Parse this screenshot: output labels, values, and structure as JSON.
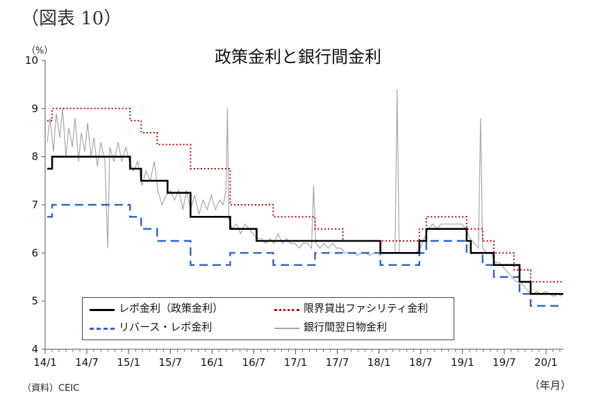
{
  "figure_label": "（図表 10）",
  "source": "（資料）CEIC",
  "chart_data": {
    "type": "line",
    "title": "政策金利と銀行間金利",
    "ylabel": "（%）",
    "xlabel": "（年月）",
    "ylim": [
      4,
      10
    ],
    "yticks": [
      "4",
      "5",
      "6",
      "7",
      "8",
      "9",
      "10"
    ],
    "xlim": [
      0,
      74.5
    ],
    "xticks": [
      {
        "m": 0,
        "label": "14/1"
      },
      {
        "m": 6,
        "label": "14/7"
      },
      {
        "m": 12,
        "label": "15/1"
      },
      {
        "m": 18,
        "label": "15/7"
      },
      {
        "m": 24,
        "label": "16/1"
      },
      {
        "m": 30,
        "label": "16/7"
      },
      {
        "m": 36,
        "label": "17/1"
      },
      {
        "m": 42,
        "label": "17/7"
      },
      {
        "m": 48,
        "label": "18/1"
      },
      {
        "m": 54,
        "label": "18/7"
      },
      {
        "m": 60,
        "label": "19/1"
      },
      {
        "m": 66,
        "label": "19/7"
      },
      {
        "m": 72,
        "label": "20/1"
      }
    ],
    "legend": "bottom-left, inside plot, 2 columns",
    "series": [
      {
        "name": "レポ金利（政策金利）",
        "style": "solid",
        "color": "#000000",
        "points": [
          [
            0.3,
            7.75
          ],
          [
            1,
            8.0
          ],
          [
            12.2,
            7.75
          ],
          [
            13.8,
            7.5
          ],
          [
            17.6,
            7.25
          ],
          [
            20.9,
            6.75
          ],
          [
            26.6,
            6.5
          ],
          [
            30.4,
            6.25
          ],
          [
            48.2,
            6.0
          ],
          [
            53.8,
            6.25
          ],
          [
            54.8,
            6.5
          ],
          [
            60.6,
            6.25
          ],
          [
            61.2,
            6.0
          ],
          [
            64.5,
            5.75
          ],
          [
            68.2,
            5.4
          ],
          [
            69.8,
            5.15
          ],
          [
            74.5,
            5.15
          ]
        ]
      },
      {
        "name": "リバース・レポ金利",
        "style": "dashed",
        "color": "#2b63c9",
        "points": [
          [
            0.3,
            6.75
          ],
          [
            1,
            7.0
          ],
          [
            12.2,
            6.75
          ],
          [
            13.8,
            6.5
          ],
          [
            16.1,
            6.25
          ],
          [
            20.9,
            5.75
          ],
          [
            26.6,
            6.0
          ],
          [
            32.8,
            5.75
          ],
          [
            38.8,
            6.0
          ],
          [
            48.2,
            5.75
          ],
          [
            53.8,
            6.0
          ],
          [
            54.8,
            6.25
          ],
          [
            60.6,
            6.0
          ],
          [
            62.9,
            5.75
          ],
          [
            64.5,
            5.5
          ],
          [
            68.2,
            5.15
          ],
          [
            69.8,
            4.9
          ],
          [
            74.5,
            4.9
          ]
        ]
      },
      {
        "name": "限界貸出ファシリティ金利",
        "style": "dotted",
        "color": "#c00000",
        "points": [
          [
            0.3,
            8.75
          ],
          [
            1,
            9.0
          ],
          [
            12.2,
            8.75
          ],
          [
            13.8,
            8.5
          ],
          [
            16.1,
            8.25
          ],
          [
            20.9,
            7.75
          ],
          [
            26.6,
            7.0
          ],
          [
            32.8,
            6.75
          ],
          [
            38.8,
            6.5
          ],
          [
            42.8,
            6.25
          ],
          [
            53.8,
            6.5
          ],
          [
            54.8,
            6.75
          ],
          [
            60.6,
            6.5
          ],
          [
            62.9,
            6.25
          ],
          [
            64.5,
            6.0
          ],
          [
            67.4,
            5.65
          ],
          [
            69.8,
            5.4
          ],
          [
            74.5,
            5.4
          ]
        ]
      },
      {
        "name": "銀行間翌日物金利",
        "style": "solid",
        "color": "#a6a6a6",
        "points": [
          [
            0.3,
            8.3
          ],
          [
            0.7,
            8.8
          ],
          [
            1.2,
            8.1
          ],
          [
            1.6,
            8.9
          ],
          [
            2.1,
            8.4
          ],
          [
            2.5,
            9.0
          ],
          [
            3.0,
            8.0
          ],
          [
            3.4,
            8.6
          ],
          [
            3.9,
            8.2
          ],
          [
            4.3,
            8.8
          ],
          [
            4.8,
            7.9
          ],
          [
            5.2,
            8.5
          ],
          [
            5.7,
            8.1
          ],
          [
            6.1,
            8.7
          ],
          [
            6.6,
            8.0
          ],
          [
            7.0,
            8.4
          ],
          [
            7.5,
            7.8
          ],
          [
            8.0,
            8.3
          ],
          [
            8.6,
            7.9
          ],
          [
            9.0,
            6.1
          ],
          [
            9.3,
            8.2
          ],
          [
            9.9,
            7.9
          ],
          [
            10.5,
            8.3
          ],
          [
            11.0,
            7.9
          ],
          [
            11.6,
            8.2
          ],
          [
            12.1,
            7.9
          ],
          [
            12.7,
            7.7
          ],
          [
            13.3,
            7.9
          ],
          [
            13.9,
            7.4
          ],
          [
            14.5,
            7.7
          ],
          [
            15.1,
            7.5
          ],
          [
            15.7,
            7.9
          ],
          [
            16.2,
            7.3
          ],
          [
            16.8,
            7.0
          ],
          [
            17.4,
            7.2
          ],
          [
            18.0,
            7.3
          ],
          [
            18.6,
            7.1
          ],
          [
            19.2,
            7.3
          ],
          [
            19.8,
            6.9
          ],
          [
            20.3,
            7.3
          ],
          [
            20.9,
            6.9
          ],
          [
            21.5,
            7.2
          ],
          [
            22.1,
            6.8
          ],
          [
            22.7,
            7.1
          ],
          [
            23.3,
            6.9
          ],
          [
            23.9,
            7.2
          ],
          [
            24.5,
            6.9
          ],
          [
            25.1,
            7.1
          ],
          [
            25.6,
            7.0
          ],
          [
            26.0,
            7.3
          ],
          [
            26.2,
            9.0
          ],
          [
            26.4,
            6.7
          ],
          [
            26.9,
            6.5
          ],
          [
            27.5,
            6.6
          ],
          [
            28.1,
            6.4
          ],
          [
            28.7,
            6.6
          ],
          [
            29.3,
            6.5
          ],
          [
            29.9,
            6.4
          ],
          [
            30.5,
            6.3
          ],
          [
            31.1,
            6.3
          ],
          [
            31.7,
            6.2
          ],
          [
            32.3,
            6.3
          ],
          [
            32.9,
            6.2
          ],
          [
            33.5,
            6.4
          ],
          [
            34.1,
            6.2
          ],
          [
            34.7,
            6.3
          ],
          [
            35.3,
            6.2
          ],
          [
            35.9,
            6.2
          ],
          [
            36.5,
            6.1
          ],
          [
            37.1,
            6.2
          ],
          [
            37.7,
            6.2
          ],
          [
            38.3,
            6.1
          ],
          [
            38.6,
            7.4
          ],
          [
            38.9,
            6.2
          ],
          [
            39.5,
            6.1
          ],
          [
            40.1,
            6.2
          ],
          [
            40.7,
            6.1
          ],
          [
            41.3,
            6.2
          ],
          [
            41.9,
            6.1
          ],
          [
            42.5,
            6.1
          ],
          [
            43.1,
            6.0
          ],
          [
            43.7,
            6.0
          ],
          [
            44.3,
            6.0
          ],
          [
            44.9,
            5.95
          ],
          [
            45.5,
            6.0
          ],
          [
            46.1,
            6.0
          ],
          [
            46.7,
            5.95
          ],
          [
            47.3,
            6.0
          ],
          [
            47.9,
            6.0
          ],
          [
            48.5,
            6.0
          ],
          [
            49.1,
            6.0
          ],
          [
            49.7,
            6.0
          ],
          [
            50.3,
            6.0
          ],
          [
            50.6,
            9.4
          ],
          [
            50.9,
            6.0
          ],
          [
            51.5,
            6.0
          ],
          [
            52.1,
            6.0
          ],
          [
            52.7,
            6.0
          ],
          [
            53.3,
            6.0
          ],
          [
            53.9,
            6.1
          ],
          [
            54.5,
            6.3
          ],
          [
            55.1,
            6.5
          ],
          [
            55.7,
            6.6
          ],
          [
            56.3,
            6.5
          ],
          [
            56.9,
            6.6
          ],
          [
            57.5,
            6.6
          ],
          [
            58.1,
            6.6
          ],
          [
            58.7,
            6.6
          ],
          [
            59.3,
            6.6
          ],
          [
            59.9,
            6.6
          ],
          [
            60.5,
            6.5
          ],
          [
            61.1,
            6.3
          ],
          [
            61.7,
            6.2
          ],
          [
            62.3,
            6.1
          ],
          [
            62.6,
            8.8
          ],
          [
            62.9,
            6.1
          ],
          [
            63.5,
            6.0
          ],
          [
            64.1,
            6.0
          ],
          [
            64.7,
            5.8
          ],
          [
            65.3,
            5.8
          ],
          [
            65.9,
            5.7
          ],
          [
            66.5,
            5.6
          ],
          [
            67.1,
            5.5
          ],
          [
            67.7,
            5.4
          ],
          [
            68.3,
            5.4
          ],
          [
            68.9,
            5.3
          ],
          [
            69.5,
            5.2
          ],
          [
            70.1,
            5.15
          ],
          [
            70.7,
            5.2
          ],
          [
            71.3,
            5.15
          ],
          [
            71.9,
            5.2
          ],
          [
            72.5,
            5.15
          ],
          [
            73.1,
            5.1
          ],
          [
            73.7,
            5.15
          ],
          [
            74.3,
            5.1
          ]
        ]
      }
    ]
  }
}
